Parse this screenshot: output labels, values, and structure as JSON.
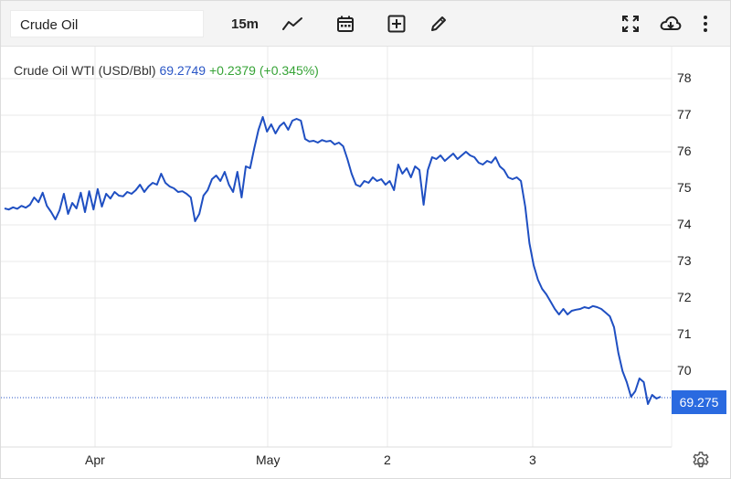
{
  "toolbar": {
    "symbol": "Crude Oil",
    "interval": "15m",
    "icons": [
      "line-chart-icon",
      "calendar-icon",
      "add-indicator-icon",
      "draw-pencil-icon",
      "fullscreen-icon",
      "download-icon",
      "more-vert-icon"
    ]
  },
  "quote": {
    "name": "Crude Oil WTI (USD/Bbl)",
    "price": "69.2749",
    "change": "+0.2379",
    "change_pct": "(+0.345%)"
  },
  "colors": {
    "line": "#1f4fc2",
    "positive": "#36a336",
    "price_tag": "#2a6ae0",
    "grid": "#e8e8e8"
  },
  "price_tag": "69.275",
  "chart_data": {
    "type": "line",
    "title": "",
    "xlabel": "",
    "ylabel": "",
    "ylim": [
      68.4,
      79.0
    ],
    "y_ticks": [
      "78",
      "77",
      "76",
      "75",
      "74",
      "73",
      "72",
      "71",
      "70"
    ],
    "x_ticks": [
      "Apr",
      "May",
      "2",
      "3"
    ],
    "grid": true,
    "series": [
      {
        "values": [
          74.45,
          74.42,
          74.48,
          74.44,
          74.52,
          74.47,
          74.55,
          74.75,
          74.62,
          74.88,
          74.52,
          74.35,
          74.15,
          74.4,
          74.85,
          74.3,
          74.6,
          74.45,
          74.88,
          74.35,
          74.92,
          74.42,
          74.98,
          74.5,
          74.85,
          74.72,
          74.9,
          74.8,
          74.78,
          74.9,
          74.85,
          74.95,
          75.1,
          74.9,
          75.05,
          75.15,
          75.1,
          75.4,
          75.15,
          75.05,
          75.0,
          74.9,
          74.92,
          74.85,
          74.75,
          74.1,
          74.3,
          74.8,
          74.95,
          75.25,
          75.35,
          75.2,
          75.45,
          75.1,
          74.9,
          75.45,
          74.75,
          75.6,
          75.55,
          76.1,
          76.6,
          76.95,
          76.55,
          76.75,
          76.5,
          76.7,
          76.8,
          76.6,
          76.85,
          76.9,
          76.85,
          76.35,
          76.28,
          76.3,
          76.25,
          76.32,
          76.28,
          76.3,
          76.2,
          76.25,
          76.15,
          75.8,
          75.4,
          75.1,
          75.05,
          75.2,
          75.15,
          75.3,
          75.2,
          75.25,
          75.1,
          75.2,
          74.95,
          75.65,
          75.4,
          75.55,
          75.3,
          75.6,
          75.5,
          74.55,
          75.5,
          75.85,
          75.8,
          75.9,
          75.75,
          75.85,
          75.95,
          75.8,
          75.9,
          76.0,
          75.9,
          75.85,
          75.7,
          75.65,
          75.75,
          75.7,
          75.85,
          75.6,
          75.5,
          75.3,
          75.25,
          75.3,
          75.2,
          74.5,
          73.5,
          72.9,
          72.5,
          72.25,
          72.1,
          71.9,
          71.7,
          71.55,
          71.7,
          71.55,
          71.65,
          71.68,
          71.7,
          71.75,
          71.72,
          71.78,
          71.75,
          71.7,
          71.6,
          71.5,
          71.2,
          70.5,
          70.0,
          69.7,
          69.3,
          69.45,
          69.8,
          69.7,
          69.1,
          69.35,
          69.25,
          69.3
        ]
      }
    ]
  }
}
